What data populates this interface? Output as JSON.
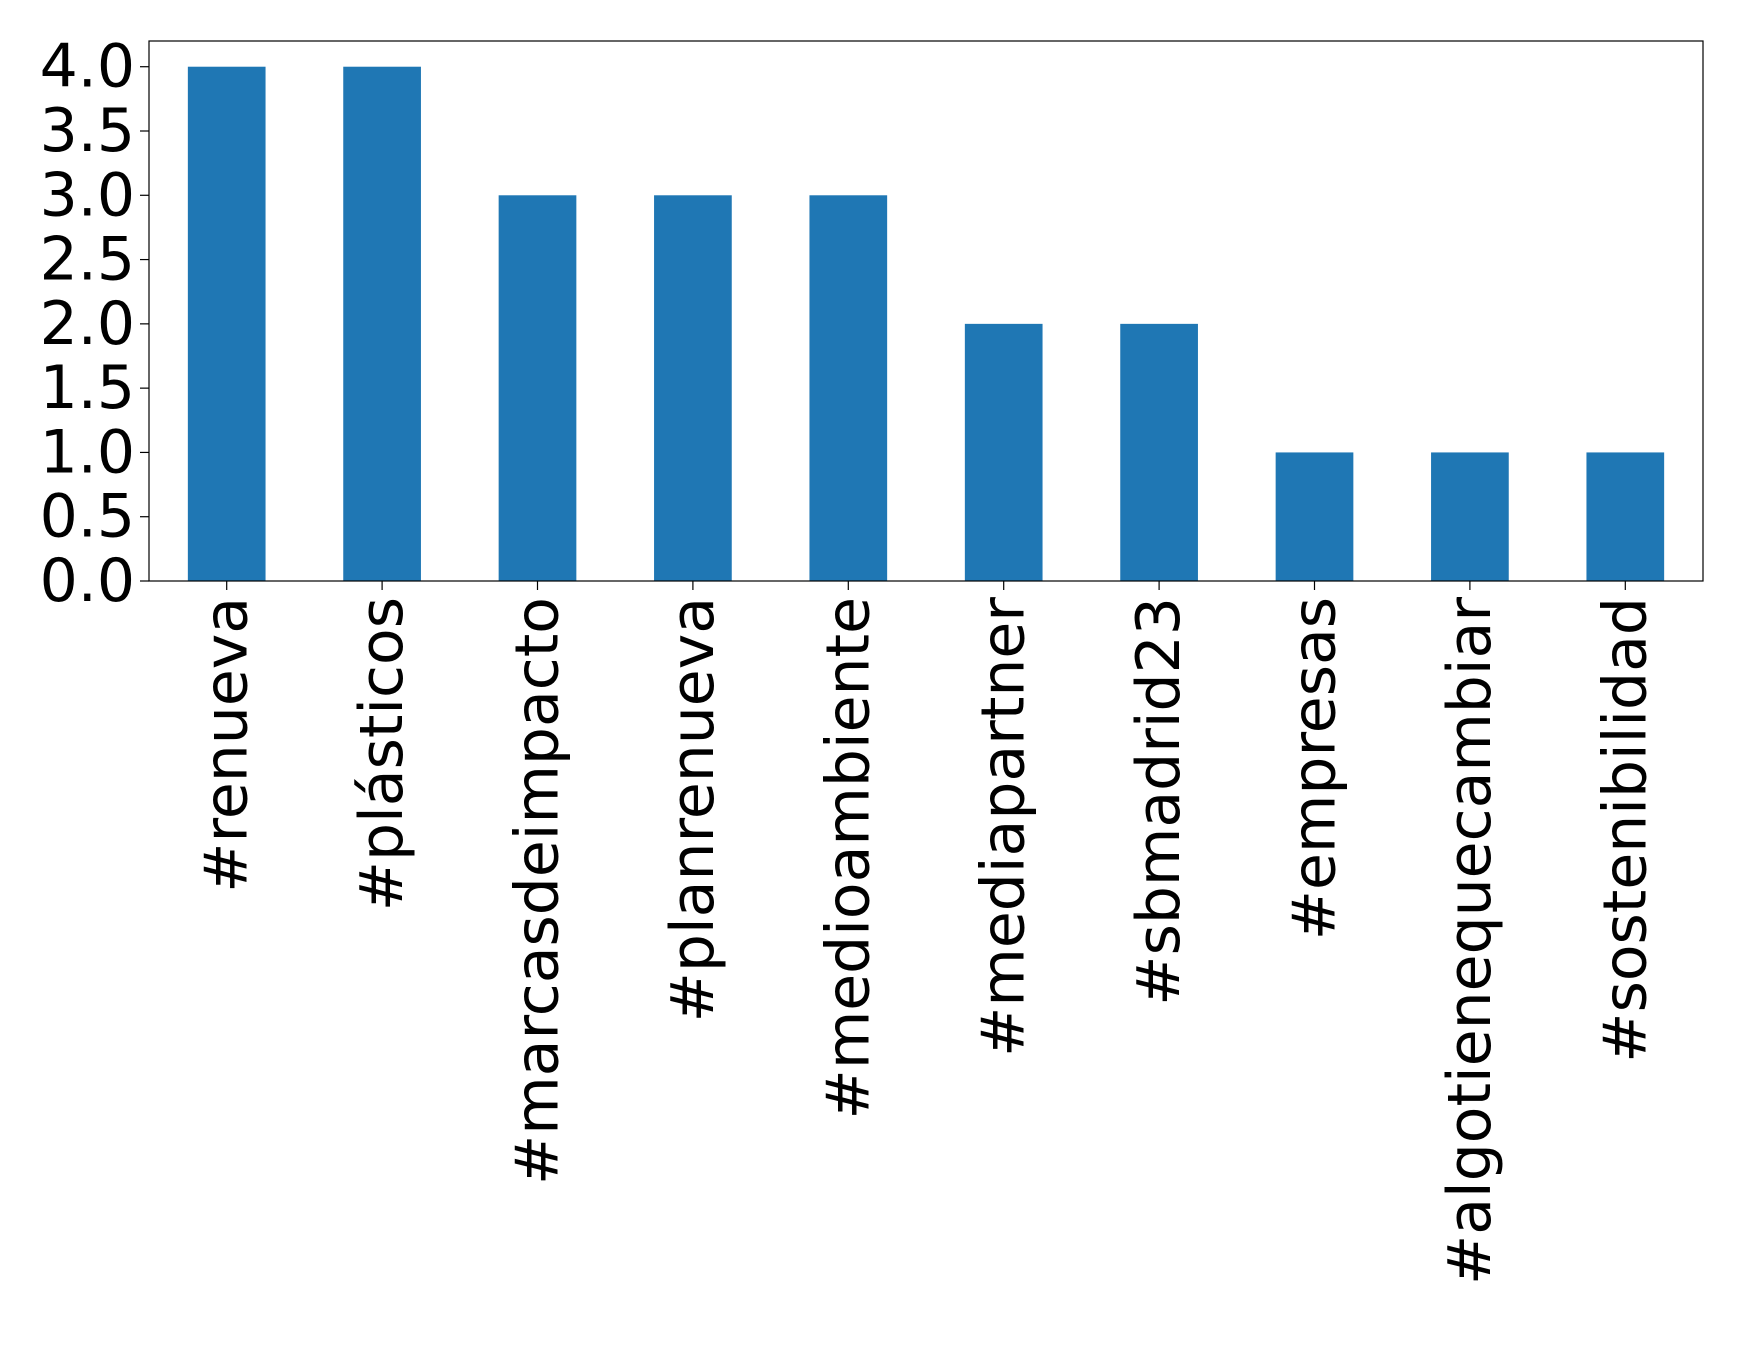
{
  "chart_data": {
    "type": "bar",
    "title": "",
    "xlabel": "",
    "ylabel": "",
    "categories": [
      "#renueva",
      "#plásticos",
      "#marcasdeimpacto",
      "#planrenueva",
      "#medioambiente",
      "#mediapartner",
      "#sbmadrid23",
      "#empresas",
      "#algotienequecambiar",
      "#sostenibilidad"
    ],
    "values": [
      4,
      4,
      3,
      3,
      3,
      2,
      2,
      1,
      1,
      1
    ],
    "ylim": [
      0,
      4.2
    ],
    "yticks": [
      0.0,
      0.5,
      1.0,
      1.5,
      2.0,
      2.5,
      3.0,
      3.5,
      4.0
    ],
    "ytick_labels": [
      "0.0",
      "0.5",
      "1.0",
      "1.5",
      "2.0",
      "2.5",
      "3.0",
      "3.5",
      "4.0"
    ],
    "bar_color": "#1f77b4",
    "grid": false,
    "legend": "none"
  }
}
